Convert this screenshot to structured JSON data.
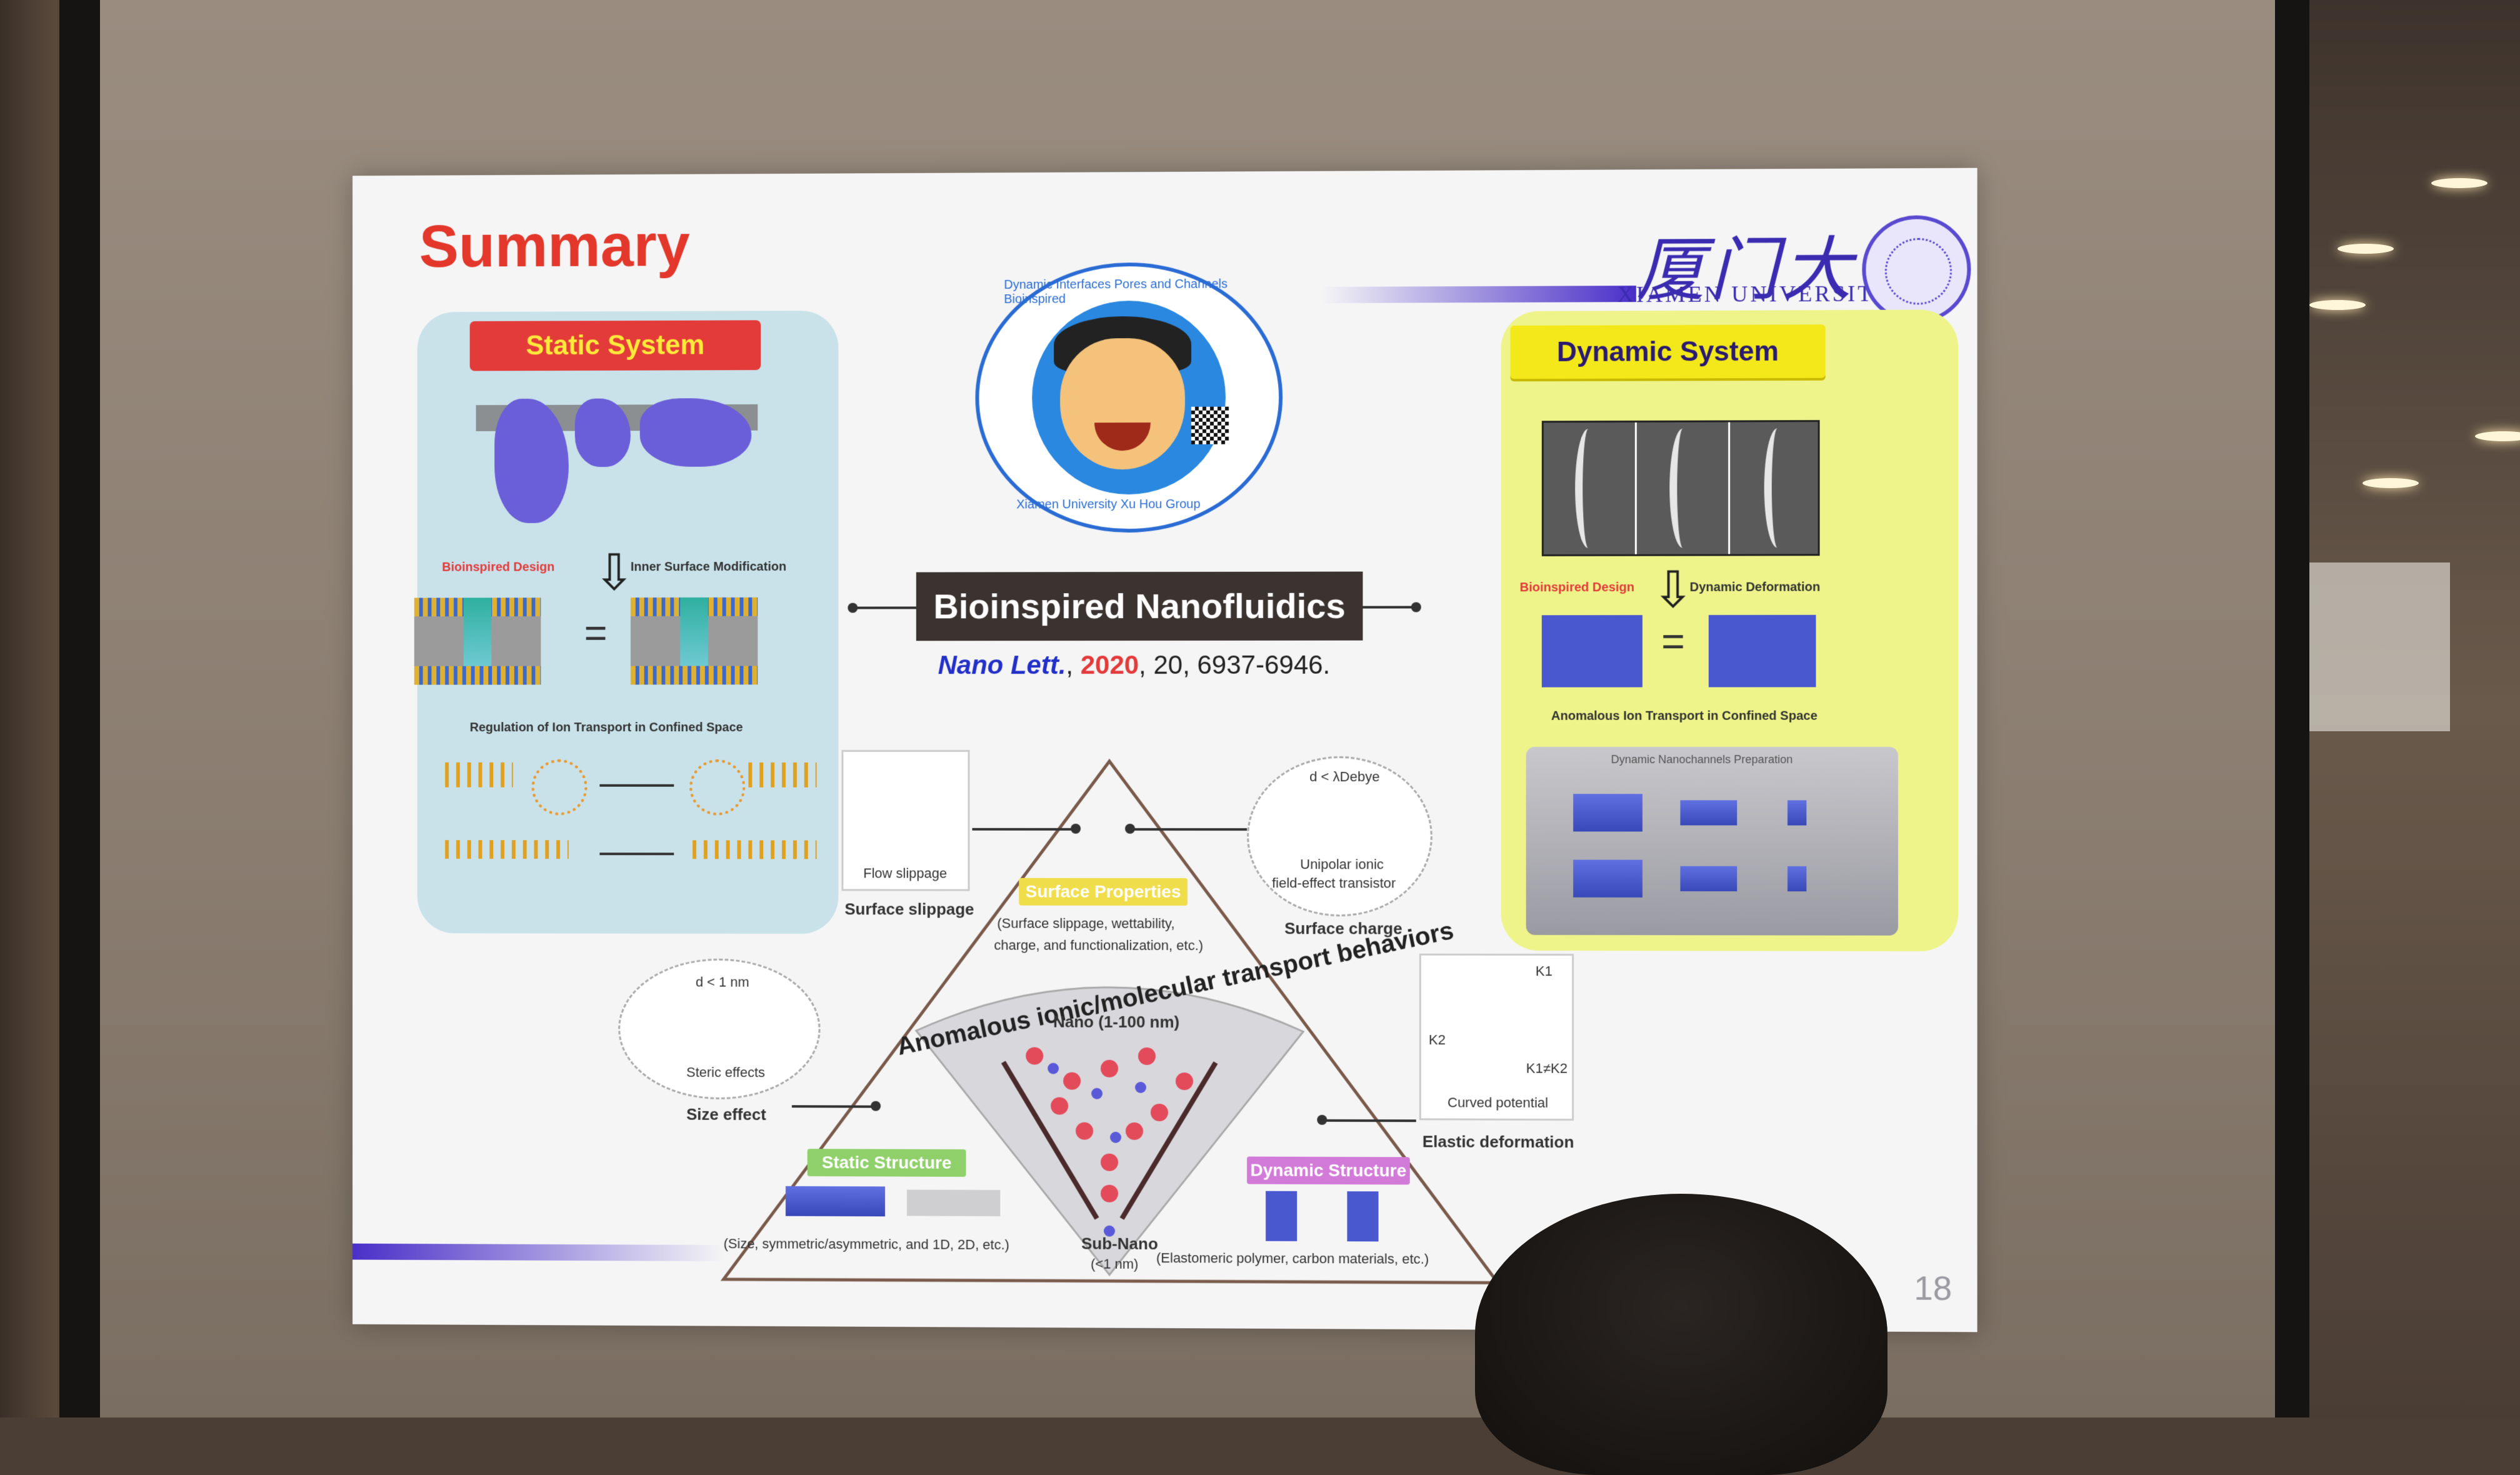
{
  "slide": {
    "title": "Summary",
    "page_number": "18",
    "university_cn": "厦门大学",
    "university_en": "XIAMEN UNIVERSITY"
  },
  "center": {
    "title": "Bioinspired Nanofluidics",
    "citation": {
      "journal": "Nano Lett.",
      "sep1": ", ",
      "year": "2020",
      "rest": ", 20, 6937-6946."
    },
    "portrait_ring": {
      "top": "Dynamic Interfaces    Pores and Channels    Bioinspired",
      "bottom": "Xiamen University    Xu Hou Group"
    }
  },
  "static_system": {
    "label": "Static System",
    "bioinspired_design": "Bioinspired Design",
    "inner_surface_modification": "Inner Surface Modification",
    "regulation": "Regulation of Ion Transport in Confined Space"
  },
  "dynamic_system": {
    "label": "Dynamic System",
    "bioinspired_design": "Bioinspired Design",
    "dynamic_deformation": "Dynamic Deformation",
    "anomalous": "Anomalous Ion Transport in Confined Space",
    "prep_title": "Dynamic Nanochannels Preparation"
  },
  "triangle": {
    "flow_slippage": "Flow slippage",
    "surface_slippage": "Surface slippage",
    "surface_properties_tag": "Surface Properties",
    "surface_properties_desc1": "(Surface slippage, wettability,",
    "surface_properties_desc2": "charge, and functionalization, etc.)",
    "unipolar": "Unipolar ionic",
    "fet": "field-effect transistor",
    "surface_charge": "Surface charge",
    "d_lambda": "d < λDebye",
    "arc": "Anomalous ionic/molecular transport behaviors",
    "nano": "Nano (1-100 nm)",
    "subnano": "Sub-Nano",
    "subnano2": "(<1 nm)",
    "d_1nm": "d < 1 nm",
    "steric": "Steric effects",
    "size_effect": "Size effect",
    "static_structure_tag": "Static Structure",
    "static_structure_desc": "(Size, symmetric/asymmetric, and 1D, 2D, etc.)",
    "dynamic_structure_tag": "Dynamic Structure",
    "dynamic_structure_desc": "(Elastomeric polymer, carbon materials, etc.)",
    "curved_potential": "Curved potential",
    "elastic_deformation": "Elastic deformation",
    "k1": "K1",
    "k2": "K2",
    "k1k2": "K1≠K2"
  },
  "colors": {
    "title_red": "#e2372a",
    "static_bg": "#c9e2ea",
    "dynamic_bg": "#eef48a",
    "uni_purple": "#3b2bb0"
  }
}
